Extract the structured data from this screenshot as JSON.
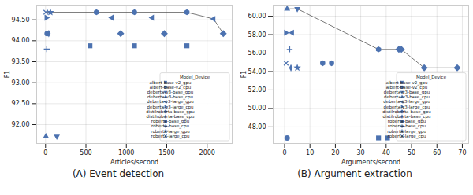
{
  "chart_data": [
    {
      "type": "scatter",
      "title": "(A) Event detection",
      "x_label": "Articles/second",
      "y_label": "F1",
      "color": "#4c72b0",
      "line_style": "solid",
      "legend": "lower right",
      "legend_title": "Model_Device",
      "grid": true,
      "xlim": [
        -110,
        2310
      ],
      "xticks": [
        0,
        500,
        1000,
        1500,
        2000
      ],
      "ylim": [
        91.55,
        94.85
      ],
      "yticks": [
        {
          "value": 92,
          "label": "92.00"
        },
        {
          "value": 92.5,
          "label": "92.50"
        },
        {
          "value": 93,
          "label": "93.00"
        },
        {
          "value": 93.5,
          "label": "93.50"
        },
        {
          "value": 94,
          "label": "94.00"
        },
        {
          "value": 94.5,
          "label": "94.50"
        }
      ],
      "series": [
        {
          "name": "albert-base-v2_gpu",
          "marker": "square",
          "x": [
            550,
            1100,
            1750
          ],
          "values": [
            93.88,
            93.88,
            93.88
          ]
        },
        {
          "name": "albert-base-v2_cpu",
          "marker": "circle",
          "x": [
            20
          ],
          "values": [
            94.17
          ]
        },
        {
          "name": "deberta-v3-base_gpu",
          "marker": "triangle-down",
          "x": [
            140
          ],
          "values": [
            91.72
          ]
        },
        {
          "name": "deberta-v3-base_cpu",
          "marker": "triangle-up",
          "x": [
            5
          ],
          "values": [
            91.72
          ]
        },
        {
          "name": "deberta-v3-large_gpu",
          "marker": "triangle-left",
          "x": [
            820,
            1320,
            2080
          ],
          "values": [
            94.55,
            94.55,
            94.52
          ]
        },
        {
          "name": "deberta-v3-large_cpu",
          "marker": "triangle-right",
          "x": [
            10
          ],
          "values": [
            94.55
          ]
        },
        {
          "name": "distilroberta-base_gpu",
          "marker": "diamond",
          "x": [
            930,
            1470,
            2200
          ],
          "values": [
            94.17,
            94.17,
            94.17
          ]
        },
        {
          "name": "distilroberta-base_cpu",
          "marker": "thin_diamond",
          "x": [
            40
          ],
          "values": [
            94.17
          ]
        },
        {
          "name": "roberta-base_gpu",
          "marker": "hexagon",
          "x": [
            630,
            1100,
            1750
          ],
          "values": [
            94.68,
            94.68,
            94.68
          ]
        },
        {
          "name": "roberta-base_cpu",
          "marker": "plus",
          "x": [
            15
          ],
          "values": [
            93.8
          ]
        },
        {
          "name": "roberta-large_gpu",
          "marker": "star",
          "x": [
            60
          ],
          "values": [
            94.68
          ]
        },
        {
          "name": "roberta-large_cpu",
          "marker": "x",
          "x": [
            3
          ],
          "values": [
            94.68
          ]
        }
      ]
    },
    {
      "type": "scatter",
      "title": "(B) Argument extraction",
      "x_label": "Arguments/second",
      "y_label": "F1",
      "color": "#4c72b0",
      "line_style": "solid",
      "legend": "lower right",
      "legend_title": "Model_Device",
      "grid": true,
      "xlim": [
        -4.5,
        72.5
      ],
      "xticks": [
        0,
        10,
        20,
        30,
        40,
        50,
        60,
        70
      ],
      "ylim": [
        46.2,
        61.2
      ],
      "yticks": [
        {
          "value": 48,
          "label": "48.00"
        },
        {
          "value": 50,
          "label": "50.00"
        },
        {
          "value": 52,
          "label": "52.00"
        },
        {
          "value": 54,
          "label": "54.00"
        },
        {
          "value": 56,
          "label": "56.00"
        },
        {
          "value": 58,
          "label": "58.00"
        },
        {
          "value": 60,
          "label": "60.00"
        }
      ],
      "series": [
        {
          "name": "albert-base-v2_gpu",
          "marker": "square",
          "x": [
            37,
            40.5
          ],
          "values": [
            46.8,
            46.8
          ]
        },
        {
          "name": "albert-base-v2_cpu",
          "marker": "circle",
          "x": [
            1
          ],
          "values": [
            46.8
          ]
        },
        {
          "name": "deberta-v3-base_gpu",
          "marker": "triangle-down",
          "x": [
            5
          ],
          "values": [
            60.8
          ]
        },
        {
          "name": "deberta-v3-base_cpu",
          "marker": "triangle-up",
          "x": [
            1
          ],
          "values": [
            60.8
          ]
        },
        {
          "name": "deberta-v3-large_gpu",
          "marker": "triangle-left",
          "x": [
            3
          ],
          "values": [
            58.2
          ]
        },
        {
          "name": "deberta-v3-large_cpu",
          "marker": "triangle-right",
          "x": [
            0.5
          ],
          "values": [
            58.2
          ]
        },
        {
          "name": "distilroberta-base_gpu",
          "marker": "diamond",
          "x": [
            45,
            46,
            55,
            68
          ],
          "values": [
            56.4,
            56.4,
            54.4,
            54.4
          ]
        },
        {
          "name": "distilroberta-base_cpu",
          "marker": "thin_diamond",
          "x": [
            2.5
          ],
          "values": [
            54.4
          ]
        },
        {
          "name": "roberta-base_gpu",
          "marker": "hexagon",
          "x": [
            15,
            18.5,
            37
          ],
          "values": [
            54.9,
            54.9,
            56.4
          ]
        },
        {
          "name": "roberta-base_cpu",
          "marker": "plus",
          "x": [
            2
          ],
          "values": [
            56.4
          ]
        },
        {
          "name": "roberta-large_gpu",
          "marker": "star",
          "x": [
            5
          ],
          "values": [
            54.4
          ]
        },
        {
          "name": "roberta-large_cpu",
          "marker": "x",
          "x": [
            0.6
          ],
          "values": [
            54.9
          ]
        }
      ]
    }
  ]
}
